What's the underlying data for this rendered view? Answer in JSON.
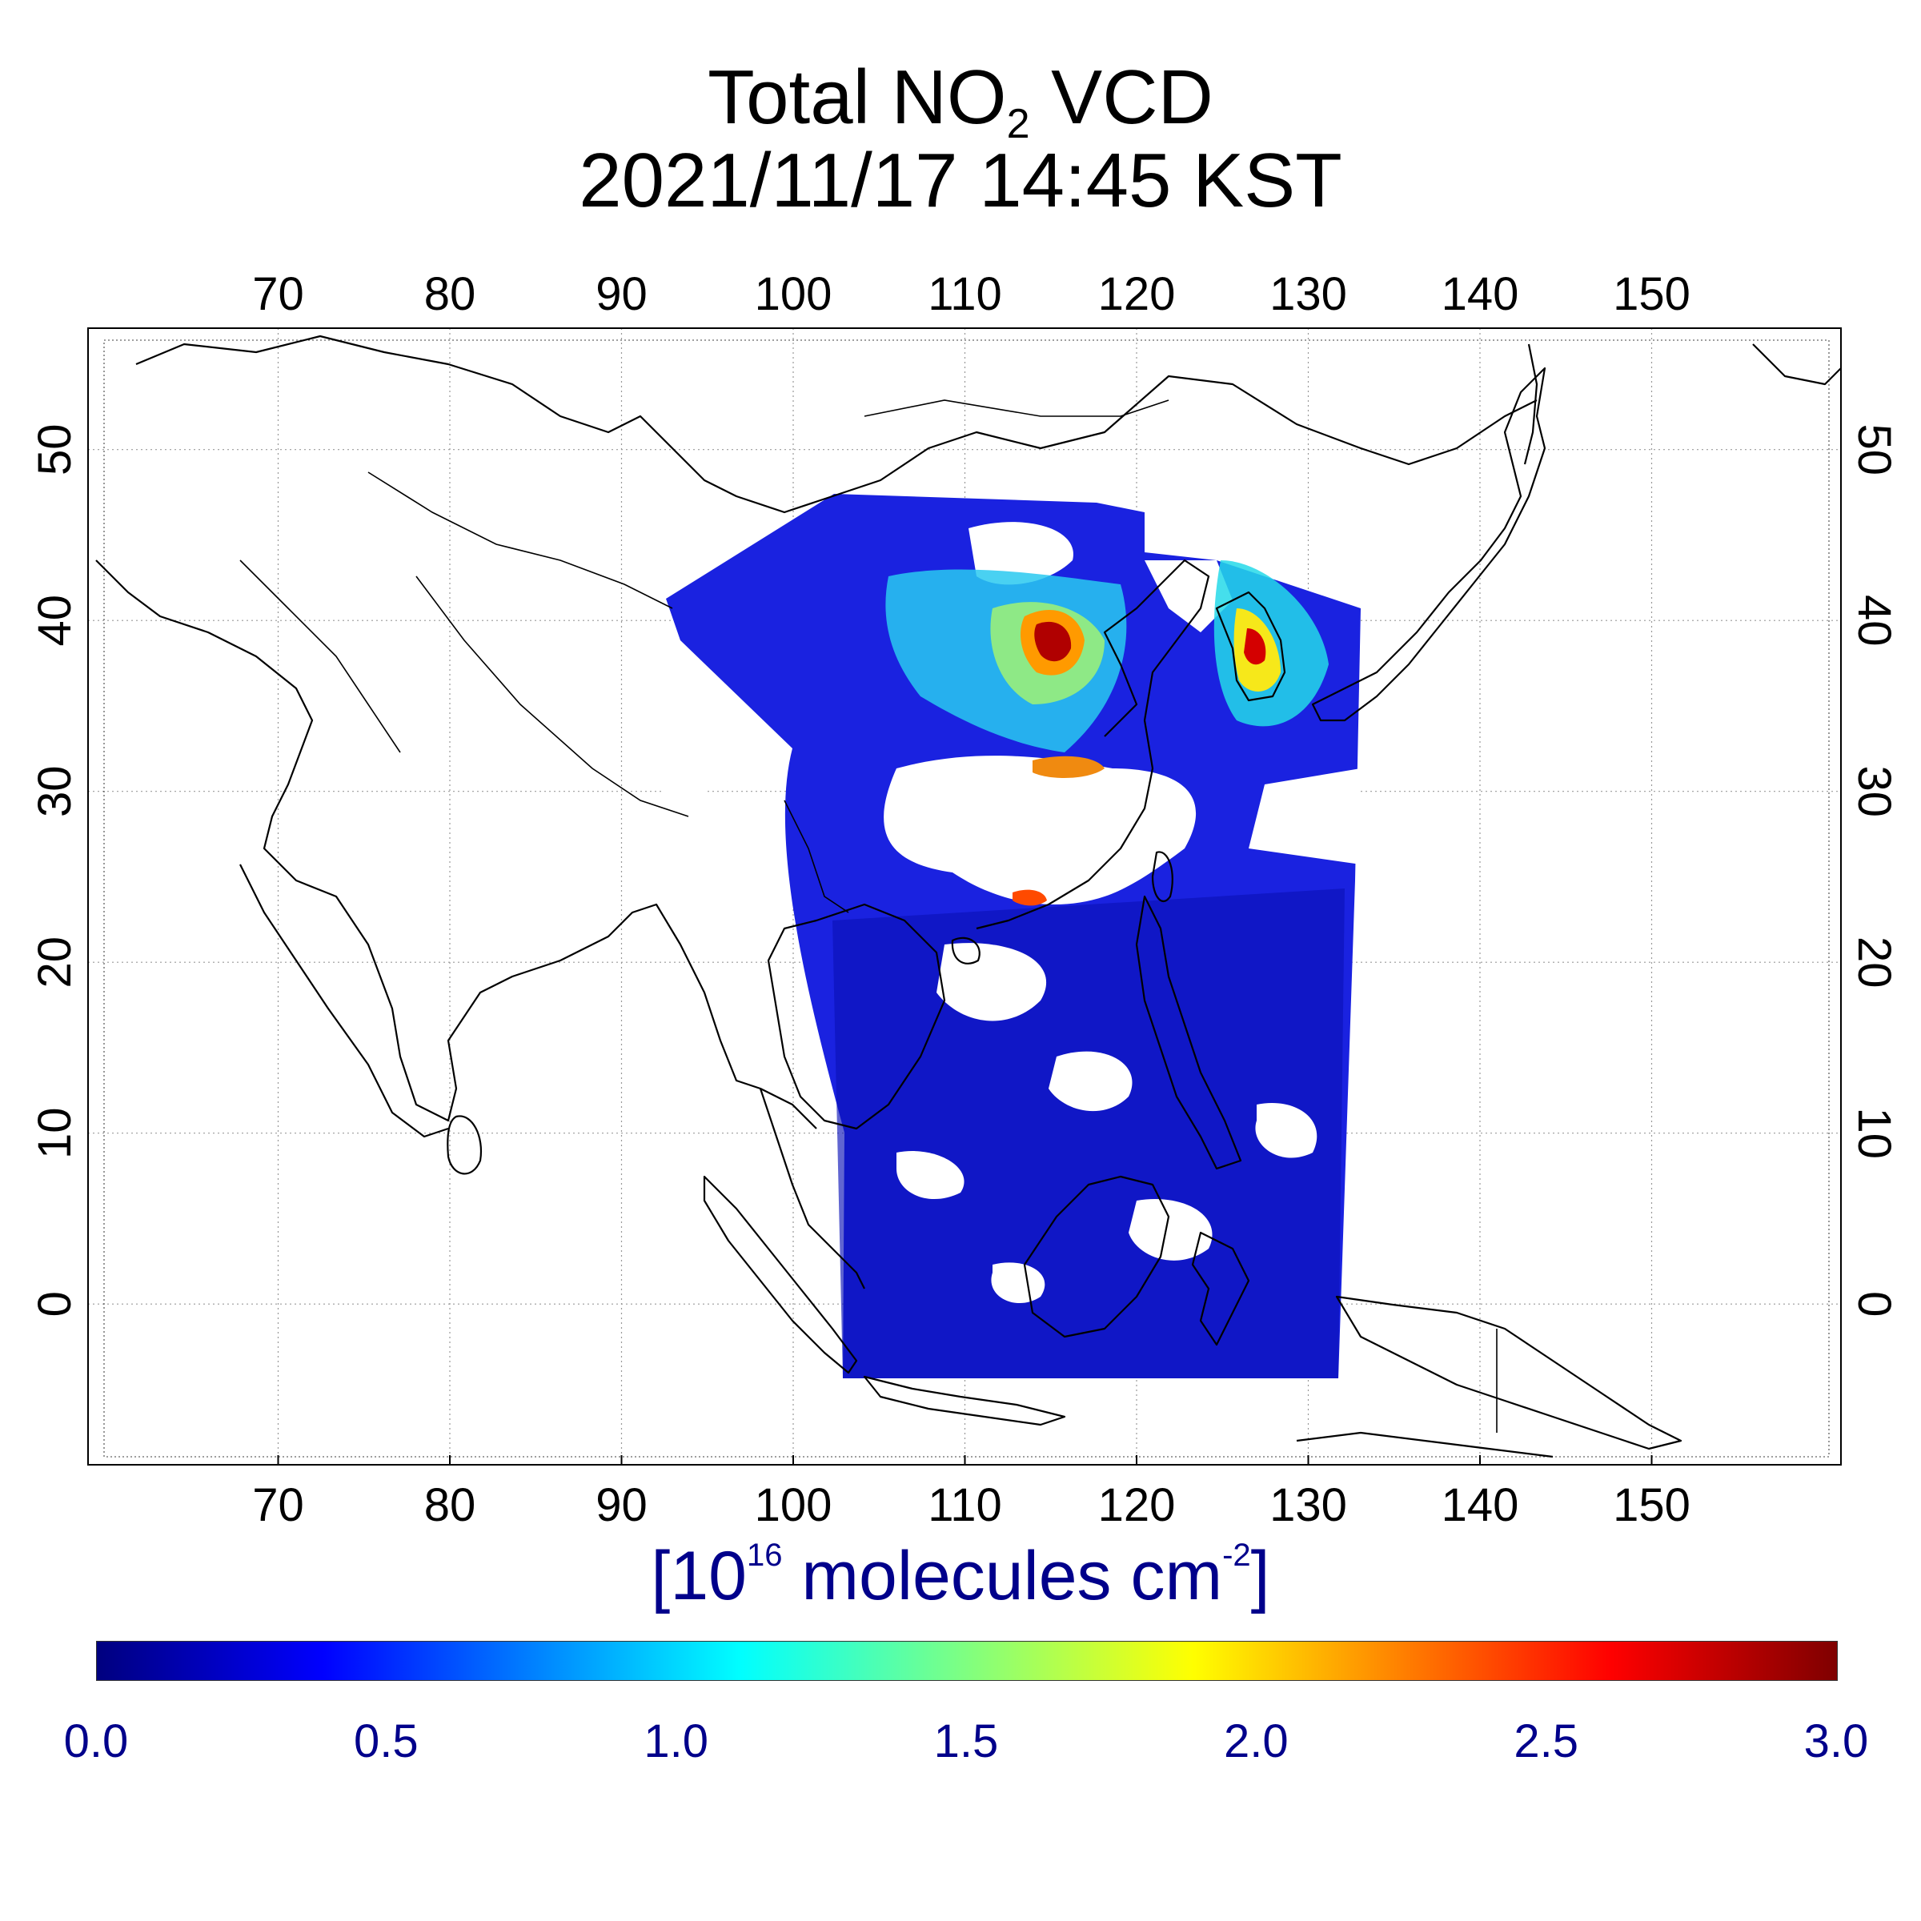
{
  "title": {
    "line1_prefix": "Total NO",
    "line1_sub": "2",
    "line1_suffix": " VCD",
    "line2": "2021/11/17 14:45 KST"
  },
  "map": {
    "projection": "equirectangular",
    "lon_range": [
      60,
      162
    ],
    "lat_range": [
      -10,
      56
    ],
    "lon_ticks": [
      "70",
      "80",
      "90",
      "100",
      "110",
      "120",
      "130",
      "140",
      "150"
    ],
    "lat_ticks": [
      "0",
      "10",
      "20",
      "30",
      "40",
      "50"
    ],
    "grid": "dotted",
    "swath_bounds": {
      "lon": [
        92,
        132.5
      ],
      "lat": [
        -5.5,
        46
      ]
    }
  },
  "colorbar": {
    "units_prefix": "[10",
    "units_exp": "16",
    "units_mid": " molecules cm",
    "units_exp2": "-2",
    "units_suffix": "]",
    "min": 0.0,
    "max": 3.0,
    "tick_labels": [
      "0.0",
      "0.5",
      "1.0",
      "1.5",
      "2.0",
      "2.5",
      "3.0"
    ],
    "colormap": "jet"
  },
  "colors": {
    "units_text": "#00008b",
    "low": "#00007f",
    "high": "#7f0000"
  }
}
